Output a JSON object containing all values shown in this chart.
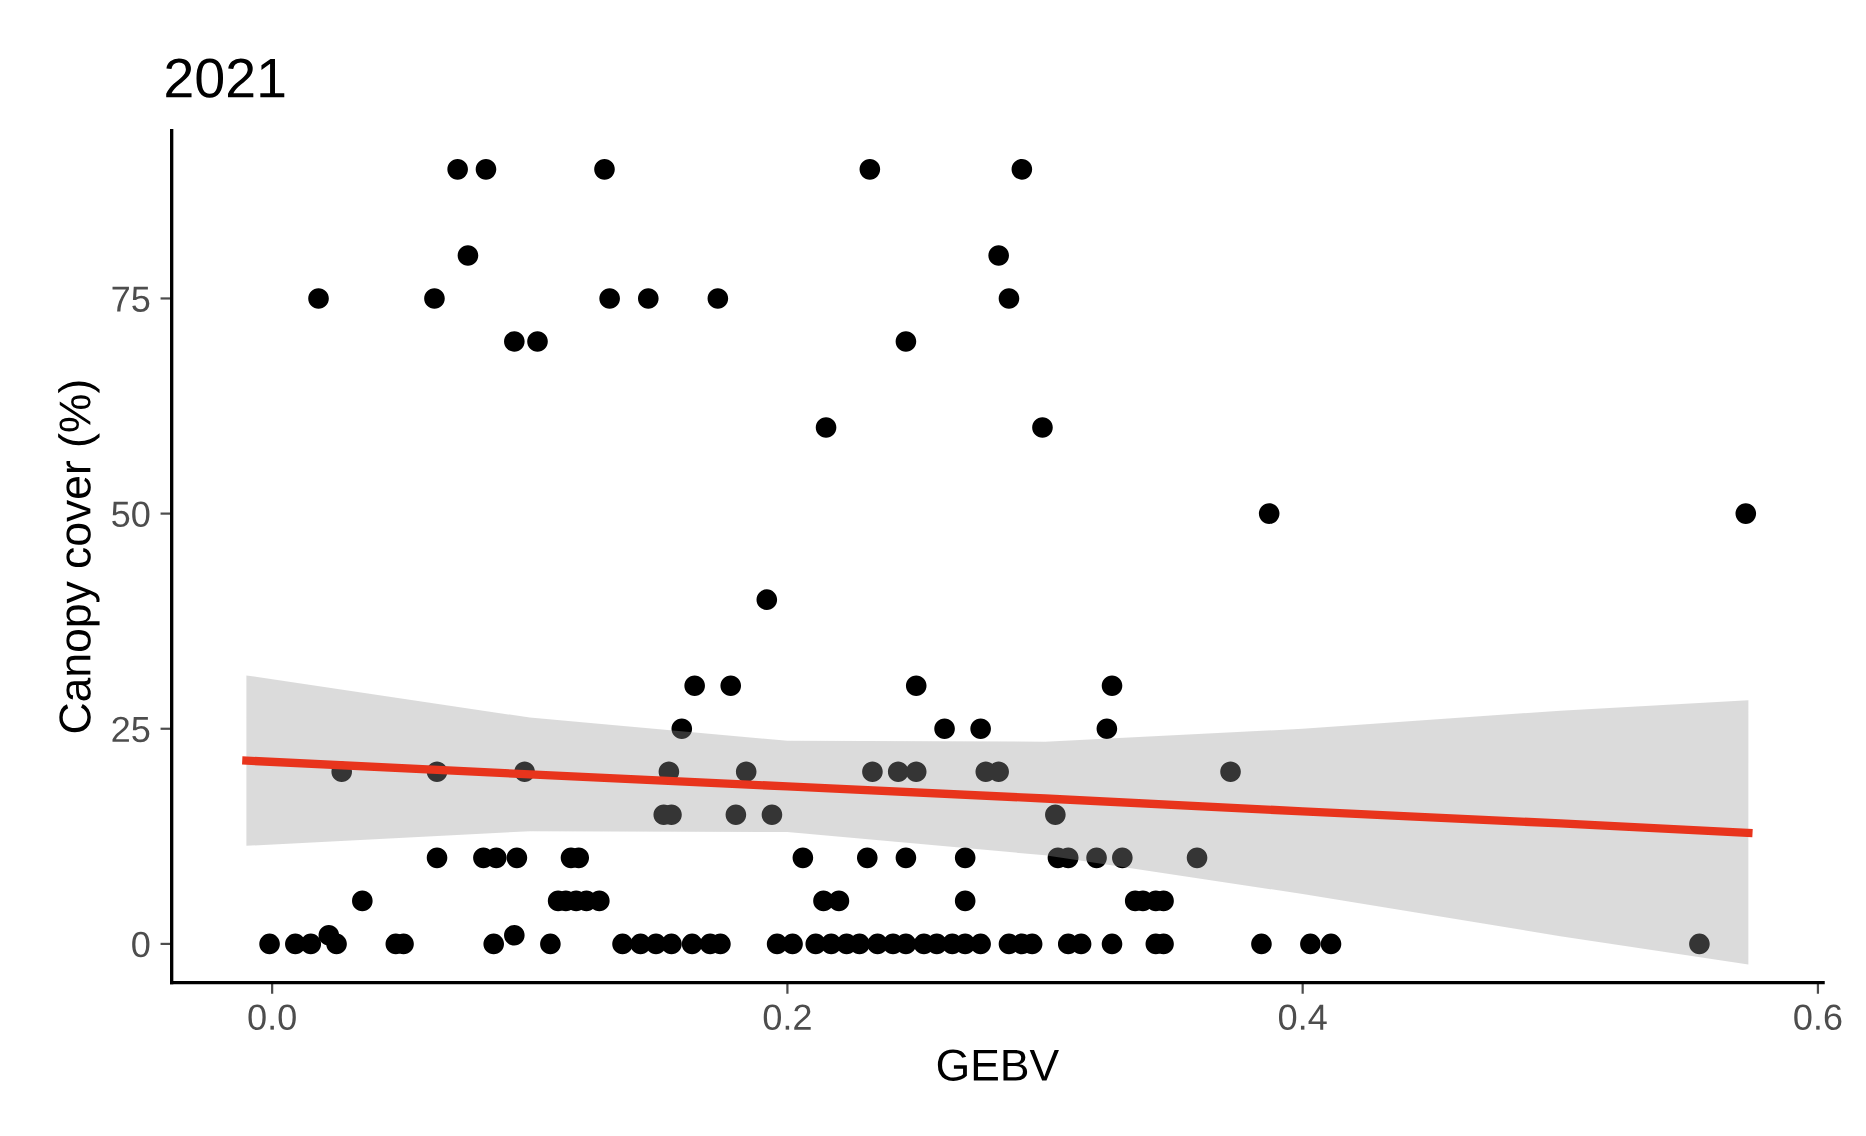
{
  "chart_data": {
    "type": "scatter",
    "title": "2021",
    "xlabel": "GEBV",
    "ylabel": "Canopy cover (%)",
    "xlim": [
      -0.039,
      0.602
    ],
    "ylim": [
      -4.5,
      94.5
    ],
    "xticks": [
      {
        "value": 0,
        "label": "0.0"
      },
      0.2,
      0.4,
      0.6
    ],
    "yticks": [
      0,
      25,
      50,
      75
    ],
    "grid": false,
    "legend": false,
    "series": [
      {
        "color": "#000000",
        "marker": "circle",
        "x": [
          0.072,
          0.083,
          0.129,
          0.232,
          0.291,
          0.076,
          0.282,
          0.018,
          0.063,
          0.131,
          0.146,
          0.173,
          0.286,
          0.094,
          0.103,
          0.246,
          0.215,
          0.299,
          0.387,
          0.572,
          0.192,
          0.164,
          0.178,
          0.25,
          0.326,
          0.159,
          0.261,
          0.275,
          0.324,
          0.027,
          0.064,
          0.098,
          0.154,
          0.184,
          0.233,
          0.243,
          0.25,
          0.277,
          0.282,
          0.372,
          0.152,
          0.155,
          0.18,
          0.194,
          0.304,
          0.064,
          0.082,
          0.087,
          0.095,
          0.116,
          0.119,
          0.206,
          0.231,
          0.246,
          0.269,
          0.305,
          0.309,
          0.32,
          0.33,
          0.359,
          0.035,
          0.111,
          0.114,
          0.118,
          0.122,
          0.127,
          0.214,
          0.22,
          0.269,
          0.335,
          0.338,
          0.343,
          0.346,
          0.094,
          0.022,
          -0.001,
          0.009,
          0.015,
          0.025,
          0.048,
          0.051,
          0.086,
          0.108,
          0.136,
          0.143,
          0.149,
          0.155,
          0.163,
          0.17,
          0.174,
          0.196,
          0.202,
          0.211,
          0.217,
          0.223,
          0.228,
          0.235,
          0.241,
          0.246,
          0.253,
          0.258,
          0.264,
          0.269,
          0.275,
          0.286,
          0.291,
          0.295,
          0.309,
          0.314,
          0.326,
          0.343,
          0.346,
          0.384,
          0.403,
          0.411,
          0.554
        ],
        "values": [
          90,
          90,
          90,
          90,
          90,
          80,
          80,
          75,
          75,
          75,
          75,
          75,
          75,
          70,
          70,
          70,
          60,
          60,
          50,
          50,
          40,
          30,
          30,
          30,
          30,
          25,
          25,
          25,
          25,
          20,
          20,
          20,
          20,
          20,
          20,
          20,
          20,
          20,
          20,
          20,
          15,
          15,
          15,
          15,
          15,
          10,
          10,
          10,
          10,
          10,
          10,
          10,
          10,
          10,
          10,
          10,
          10,
          10,
          10,
          10,
          5,
          5,
          5,
          5,
          5,
          5,
          5,
          5,
          5,
          5,
          5,
          5,
          5,
          1,
          1,
          0,
          0,
          0,
          0,
          0,
          0,
          0,
          0,
          0,
          0,
          0,
          0,
          0,
          0,
          0,
          0,
          0,
          0,
          0,
          0,
          0,
          0,
          0,
          0,
          0,
          0,
          0,
          0,
          0,
          0,
          0,
          0,
          0,
          0,
          0,
          0,
          0,
          0,
          0,
          0,
          0
        ]
      },
      {
        "type": "line",
        "color": "#e8341c",
        "line_style": "solid",
        "marker": "none",
        "x": [
          -0.01,
          0.1,
          0.2,
          0.3,
          0.4,
          0.5,
          0.573
        ],
        "values": [
          21.3,
          19.7,
          18.3,
          16.9,
          15.4,
          14.0,
          12.9
        ],
        "lower": [
          11.4,
          13.1,
          13.0,
          10.3,
          5.8,
          0.9,
          -2.4
        ],
        "upper": [
          31.2,
          26.3,
          23.6,
          23.5,
          25.0,
          27.1,
          28.3
        ]
      }
    ]
  }
}
